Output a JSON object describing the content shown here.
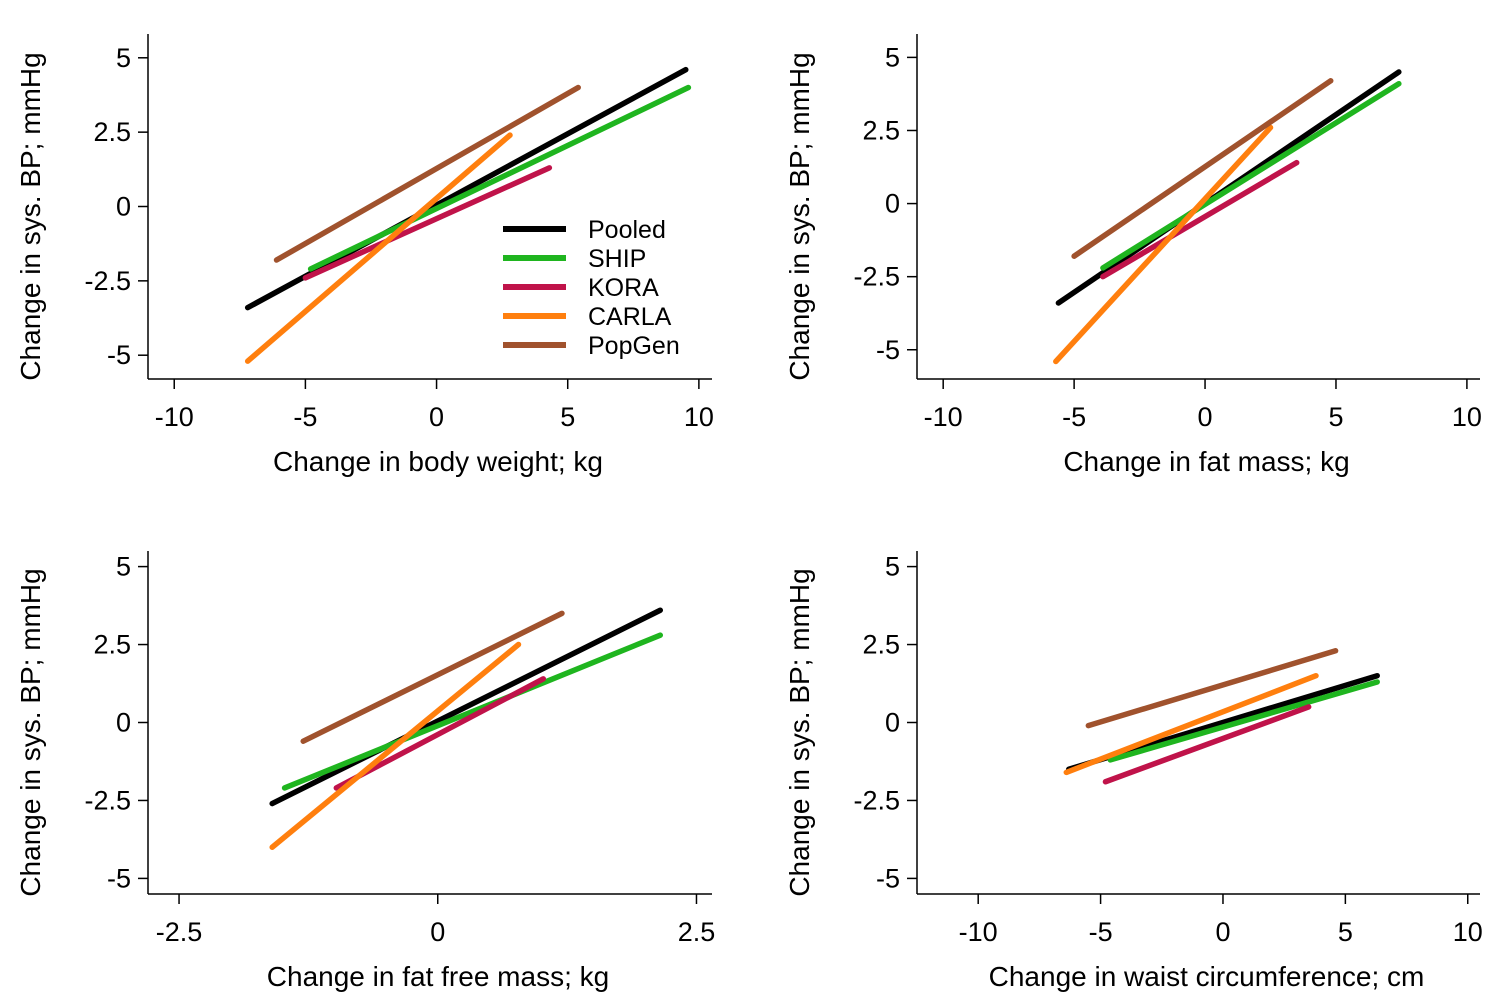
{
  "figure": {
    "legend": {
      "placement": "inside-lower-right of top-left panel",
      "entries": [
        {
          "label": "Pooled",
          "color": "#000000"
        },
        {
          "label": "SHIP",
          "color": "#1fb51f"
        },
        {
          "label": "KORA",
          "color": "#c0134a"
        },
        {
          "label": "CARLA",
          "color": "#ff7f0e"
        },
        {
          "label": "PopGen",
          "color": "#a0522d"
        }
      ]
    }
  },
  "chart_data": [
    {
      "type": "line",
      "xlabel": "Change in body weight; kg",
      "ylabel": "Change in sys. BP; mmHg",
      "xlim": [
        -11,
        10.5
      ],
      "ylim": [
        -5.8,
        5.8
      ],
      "xticks": [
        -10,
        -5,
        0,
        5,
        10
      ],
      "xtick_labels": [
        "-10",
        "-5",
        "0",
        "5",
        "10"
      ],
      "yticks": [
        -5,
        -2.5,
        0,
        2.5,
        5
      ],
      "ytick_labels": [
        "-5",
        "-2.5",
        "0",
        "2.5",
        "5"
      ],
      "grid": false,
      "series": [
        {
          "name": "Pooled",
          "color": "#000000",
          "x": [
            -7.2,
            9.5
          ],
          "y": [
            -3.4,
            4.6
          ]
        },
        {
          "name": "SHIP",
          "color": "#1fb51f",
          "x": [
            -4.8,
            9.6
          ],
          "y": [
            -2.1,
            4.0
          ]
        },
        {
          "name": "KORA",
          "color": "#c0134a",
          "x": [
            -5.0,
            4.3
          ],
          "y": [
            -2.4,
            1.3
          ]
        },
        {
          "name": "CARLA",
          "color": "#ff7f0e",
          "x": [
            -7.2,
            2.8
          ],
          "y": [
            -5.2,
            2.4
          ]
        },
        {
          "name": "PopGen",
          "color": "#a0522d",
          "x": [
            -6.1,
            5.4
          ],
          "y": [
            -1.8,
            4.0
          ]
        }
      ]
    },
    {
      "type": "line",
      "xlabel": "Change in fat mass; kg",
      "ylabel": "Change in sys. BP; mmHg",
      "xlim": [
        -11,
        10.5
      ],
      "ylim": [
        -6.0,
        5.8
      ],
      "xticks": [
        -10,
        -5,
        0,
        5,
        10
      ],
      "xtick_labels": [
        "-10",
        "-5",
        "0",
        "5",
        "10"
      ],
      "yticks": [
        -5,
        -2.5,
        0,
        2.5,
        5
      ],
      "ytick_labels": [
        "-5",
        "-2.5",
        "0",
        "2.5",
        "5"
      ],
      "grid": false,
      "series": [
        {
          "name": "Pooled",
          "color": "#000000",
          "x": [
            -5.6,
            7.4
          ],
          "y": [
            -3.4,
            4.5
          ]
        },
        {
          "name": "SHIP",
          "color": "#1fb51f",
          "x": [
            -3.9,
            7.4
          ],
          "y": [
            -2.2,
            4.1
          ]
        },
        {
          "name": "KORA",
          "color": "#c0134a",
          "x": [
            -3.9,
            3.5
          ],
          "y": [
            -2.5,
            1.4
          ]
        },
        {
          "name": "CARLA",
          "color": "#ff7f0e",
          "x": [
            -5.7,
            2.5
          ],
          "y": [
            -5.4,
            2.6
          ]
        },
        {
          "name": "PopGen",
          "color": "#a0522d",
          "x": [
            -5.0,
            4.8
          ],
          "y": [
            -1.8,
            4.2
          ]
        }
      ]
    },
    {
      "type": "line",
      "xlabel": "Change in fat free mass; kg",
      "ylabel": "Change in sys. BP; mmHg",
      "xlim": [
        -2.8,
        2.65
      ],
      "ylim": [
        -5.5,
        5.5
      ],
      "xticks": [
        -2.5,
        0,
        2.5
      ],
      "xtick_labels": [
        "-2.5",
        "0",
        "2.5"
      ],
      "yticks": [
        -5,
        -2.5,
        0,
        2.5,
        5
      ],
      "ytick_labels": [
        "-5",
        "-2.5",
        "0",
        "2.5",
        "5"
      ],
      "grid": false,
      "series": [
        {
          "name": "Pooled",
          "color": "#000000",
          "x": [
            -1.6,
            2.15
          ],
          "y": [
            -2.6,
            3.6
          ]
        },
        {
          "name": "SHIP",
          "color": "#1fb51f",
          "x": [
            -1.48,
            2.15
          ],
          "y": [
            -2.1,
            2.8
          ]
        },
        {
          "name": "KORA",
          "color": "#c0134a",
          "x": [
            -0.98,
            1.02
          ],
          "y": [
            -2.1,
            1.4
          ]
        },
        {
          "name": "CARLA",
          "color": "#ff7f0e",
          "x": [
            -1.6,
            0.78
          ],
          "y": [
            -4.0,
            2.5
          ]
        },
        {
          "name": "PopGen",
          "color": "#a0522d",
          "x": [
            -1.3,
            1.2
          ],
          "y": [
            -0.6,
            3.5
          ]
        }
      ]
    },
    {
      "type": "line",
      "xlabel": "Change in waist circumference; cm",
      "ylabel": "Change in sys. BP; mmHg",
      "xlim": [
        -12.5,
        10.5
      ],
      "ylim": [
        -5.5,
        5.5
      ],
      "xticks": [
        -10,
        -5,
        0,
        5,
        10
      ],
      "xtick_labels": [
        "-10",
        "-5",
        "0",
        "5",
        "10"
      ],
      "yticks": [
        -5,
        -2.5,
        0,
        2.5,
        5
      ],
      "ytick_labels": [
        "-5",
        "-2.5",
        "0",
        "2.5",
        "5"
      ],
      "grid": false,
      "series": [
        {
          "name": "Pooled",
          "color": "#000000",
          "x": [
            -6.3,
            6.3
          ],
          "y": [
            -1.5,
            1.5
          ]
        },
        {
          "name": "SHIP",
          "color": "#1fb51f",
          "x": [
            -4.6,
            6.3
          ],
          "y": [
            -1.2,
            1.3
          ]
        },
        {
          "name": "KORA",
          "color": "#c0134a",
          "x": [
            -4.8,
            3.5
          ],
          "y": [
            -1.9,
            0.5
          ]
        },
        {
          "name": "CARLA",
          "color": "#ff7f0e",
          "x": [
            -6.4,
            3.8
          ],
          "y": [
            -1.6,
            1.5
          ]
        },
        {
          "name": "PopGen",
          "color": "#a0522d",
          "x": [
            -5.5,
            4.6
          ],
          "y": [
            -0.1,
            2.3
          ]
        }
      ]
    }
  ]
}
